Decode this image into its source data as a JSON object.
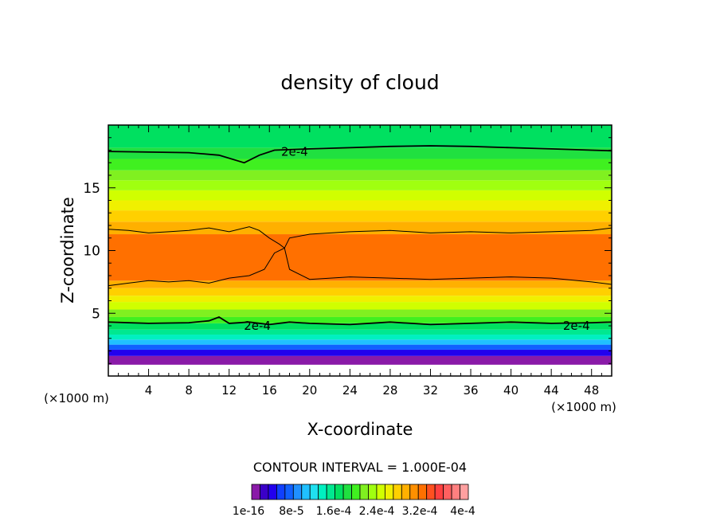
{
  "chart_data": {
    "type": "heatmap",
    "title": "density of cloud",
    "xlabel": "X-coordinate",
    "ylabel": "Z-coordinate",
    "x_unit_label": "(×1000 m)",
    "x_unit_label_right": "(×1000 m)",
    "xlim": [
      0,
      50
    ],
    "ylim": [
      0,
      20
    ],
    "x_ticks": [
      4,
      8,
      12,
      16,
      20,
      24,
      28,
      32,
      36,
      40,
      44,
      48
    ],
    "y_ticks": [
      5,
      10,
      15
    ],
    "x_tick_labels": [
      "4",
      "8",
      "12",
      "16",
      "20",
      "24",
      "28",
      "32",
      "36",
      "40",
      "44",
      "48"
    ],
    "y_tick_labels": [
      "5",
      "10",
      "15"
    ],
    "contour_interval_label": "CONTOUR INTERVAL = 1.000E-04",
    "contour_labels": [
      "2e-4",
      "2e-4",
      "2e-4"
    ],
    "colorbar_labels": [
      "1e-16",
      "8e-5",
      "1.6e-4",
      "2.4e-4",
      "3.2e-4",
      "4e-4"
    ],
    "colorbar_colors": [
      "#8a1aa8",
      "#3a00c8",
      "#2200ee",
      "#1040ff",
      "#1060ff",
      "#2090ff",
      "#20c0ff",
      "#20e0f0",
      "#00f0c0",
      "#00e890",
      "#00e060",
      "#20e040",
      "#40f020",
      "#80f020",
      "#a0ff10",
      "#d0ff00",
      "#f0f000",
      "#ffd000",
      "#ffb000",
      "#ff9000",
      "#ff7000",
      "#ff5020",
      "#ff4040",
      "#ff6060",
      "#ff8080",
      "#ffa0a0"
    ],
    "bands": [
      {
        "z": [
          0.0,
          0.9
        ],
        "value": 0,
        "color": "#ffffff"
      },
      {
        "z": [
          0.9,
          1.6
        ],
        "value": 3e-05,
        "color": "#8a1aa8"
      },
      {
        "z": [
          1.6,
          2.1
        ],
        "value": 5e-05,
        "color": "#2200ee"
      },
      {
        "z": [
          2.1,
          2.5
        ],
        "value": 7e-05,
        "color": "#1060ff"
      },
      {
        "z": [
          2.5,
          2.9
        ],
        "value": 9e-05,
        "color": "#20c0ff"
      },
      {
        "z": [
          2.9,
          3.3
        ],
        "value": 0.00011,
        "color": "#00f0c0"
      },
      {
        "z": [
          3.3,
          3.7
        ],
        "value": 0.00013,
        "color": "#00e890"
      },
      {
        "z": [
          3.7,
          4.2
        ],
        "value": 0.00016,
        "color": "#00e060"
      },
      {
        "z": [
          4.2,
          4.7
        ],
        "value": 0.0002,
        "color": "#40f020"
      },
      {
        "z": [
          4.7,
          5.3
        ],
        "value": 0.00022,
        "color": "#80f020"
      },
      {
        "z": [
          5.3,
          5.9
        ],
        "value": 0.00025,
        "color": "#d0ff00"
      },
      {
        "z": [
          5.9,
          6.4
        ],
        "value": 0.00028,
        "color": "#f0f000"
      },
      {
        "z": [
          6.4,
          7.0
        ],
        "value": 0.0003,
        "color": "#ffd000"
      },
      {
        "z": [
          7.0,
          7.6
        ],
        "value": 0.00033,
        "color": "#ffb000"
      },
      {
        "z": [
          7.6,
          11.3
        ],
        "value": 0.00036,
        "color": "#ff7000"
      },
      {
        "z": [
          11.3,
          12.3
        ],
        "value": 0.00033,
        "color": "#ffb000"
      },
      {
        "z": [
          12.3,
          13.2
        ],
        "value": 0.0003,
        "color": "#ffd000"
      },
      {
        "z": [
          13.2,
          14.0
        ],
        "value": 0.00028,
        "color": "#f0f000"
      },
      {
        "z": [
          14.0,
          14.8
        ],
        "value": 0.00025,
        "color": "#d0ff00"
      },
      {
        "z": [
          14.8,
          15.6
        ],
        "value": 0.00023,
        "color": "#a0ff10"
      },
      {
        "z": [
          15.6,
          16.4
        ],
        "value": 0.00021,
        "color": "#80f020"
      },
      {
        "z": [
          16.4,
          17.3
        ],
        "value": 0.0002,
        "color": "#40f020"
      },
      {
        "z": [
          17.3,
          18.2
        ],
        "value": 0.00018,
        "color": "#20e040"
      },
      {
        "z": [
          18.2,
          20.0
        ],
        "value": 0.00016,
        "color": "#00e060"
      }
    ],
    "contours": [
      {
        "level": "2e-4",
        "x": [
          0,
          4,
          8,
          11,
          13.5,
          15,
          16.5,
          20,
          24,
          28,
          32,
          36,
          40,
          44,
          48,
          50
        ],
        "z": [
          17.9,
          17.85,
          17.8,
          17.6,
          17.0,
          17.6,
          18.0,
          18.1,
          18.2,
          18.3,
          18.35,
          18.3,
          18.2,
          18.1,
          18.0,
          17.95
        ]
      },
      {
        "level": "2e-4",
        "x": [
          0,
          4,
          8,
          10,
          11,
          12,
          14,
          16,
          18,
          20,
          24,
          28,
          32,
          36,
          40,
          44,
          48,
          50
        ],
        "z": [
          4.3,
          4.2,
          4.25,
          4.4,
          4.7,
          4.2,
          4.3,
          4.1,
          4.3,
          4.2,
          4.1,
          4.3,
          4.1,
          4.2,
          4.3,
          4.2,
          4.25,
          4.3
        ]
      },
      {
        "level": "3e-4",
        "x": [
          0,
          2,
          4,
          6,
          8,
          10,
          12,
          14,
          15,
          16,
          17,
          17.5,
          18,
          20,
          24,
          28,
          32,
          36,
          40,
          44,
          48,
          50
        ],
        "z": [
          11.7,
          11.6,
          11.4,
          11.5,
          11.6,
          11.8,
          11.5,
          11.9,
          11.6,
          11.0,
          10.5,
          10.2,
          11.0,
          11.3,
          11.5,
          11.6,
          11.4,
          11.5,
          11.4,
          11.5,
          11.6,
          11.8
        ]
      },
      {
        "level": "3e-4",
        "x": [
          0,
          2,
          4,
          6,
          8,
          10,
          12,
          14,
          15.5,
          16.5,
          17.5,
          18,
          20,
          24,
          28,
          32,
          36,
          40,
          44,
          48,
          50
        ],
        "z": [
          7.2,
          7.4,
          7.6,
          7.5,
          7.6,
          7.4,
          7.8,
          8.0,
          8.5,
          9.8,
          10.2,
          8.5,
          7.7,
          7.9,
          7.8,
          7.7,
          7.8,
          7.9,
          7.8,
          7.5,
          7.3
        ]
      }
    ],
    "grid": false,
    "legend": "bottom colorbar"
  }
}
